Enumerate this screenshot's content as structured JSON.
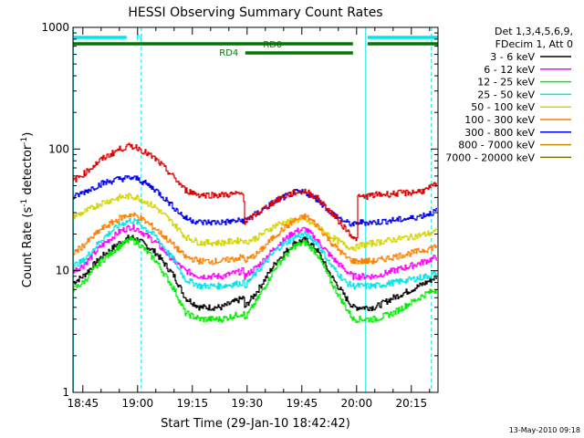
{
  "chart_data": {
    "type": "line",
    "title": "HESSI Observing Summary Count Rates",
    "xlabel": "Start Time (29-Jan-10 18:42:42)",
    "ylabel_main": "Count Rate (s",
    "ylabel_sup1": "-1",
    "ylabel_mid": " detector",
    "ylabel_sup2": "-1",
    "ylabel_end": ")",
    "y_scale": "log",
    "ylim": [
      1,
      1000
    ],
    "xlim_minutes": [
      -2.7,
      97.3
    ],
    "x_ticks": [
      {
        "t": 0,
        "label": "18:45"
      },
      {
        "t": 15,
        "label": "19:00"
      },
      {
        "t": 30,
        "label": "19:15"
      },
      {
        "t": 45,
        "label": "19:30"
      },
      {
        "t": 60,
        "label": "19:45"
      },
      {
        "t": 75,
        "label": "20:00"
      },
      {
        "t": 90,
        "label": "20:15"
      }
    ],
    "y_ticks": [
      {
        "v": 1,
        "label": "1"
      },
      {
        "v": 10,
        "label": "10"
      },
      {
        "v": 100,
        "label": "100"
      },
      {
        "v": 1000,
        "label": "1000"
      }
    ],
    "legend_header": [
      "Det 1,3,4,5,6,9,",
      "FDecim 1, Att 0"
    ],
    "legend_placement": "right",
    "timestamp": "13-May-2010 09:18",
    "series": [
      {
        "name": "3 - 6 keV",
        "color": "#000000",
        "points": [
          [
            -2.7,
            8
          ],
          [
            0,
            9
          ],
          [
            5,
            13
          ],
          [
            10,
            17
          ],
          [
            13,
            19
          ],
          [
            15,
            18
          ],
          [
            20,
            14
          ],
          [
            25,
            9
          ],
          [
            28,
            6
          ],
          [
            32,
            5
          ],
          [
            38,
            5
          ],
          [
            44,
            6
          ],
          [
            44.3,
            5
          ],
          [
            48,
            7
          ],
          [
            53,
            12
          ],
          [
            58,
            17
          ],
          [
            61,
            18
          ],
          [
            64,
            15
          ],
          [
            68,
            9
          ],
          [
            72,
            6
          ],
          [
            74,
            5
          ],
          [
            75,
            5
          ],
          [
            75.3,
            5
          ],
          [
            80,
            5
          ],
          [
            85,
            6
          ],
          [
            90,
            7
          ],
          [
            94,
            8
          ],
          [
            97,
            9
          ]
        ]
      },
      {
        "name": "6 - 12 keV",
        "color": "#ff00ff",
        "points": [
          [
            -2.7,
            10
          ],
          [
            0,
            11
          ],
          [
            5,
            16
          ],
          [
            10,
            21
          ],
          [
            13,
            23
          ],
          [
            15,
            22
          ],
          [
            20,
            17
          ],
          [
            25,
            12
          ],
          [
            28,
            10
          ],
          [
            32,
            9
          ],
          [
            38,
            9
          ],
          [
            44,
            10
          ],
          [
            44.3,
            9
          ],
          [
            48,
            11
          ],
          [
            53,
            16
          ],
          [
            58,
            21
          ],
          [
            61,
            22
          ],
          [
            64,
            18
          ],
          [
            68,
            13
          ],
          [
            72,
            10
          ],
          [
            74,
            9
          ],
          [
            75,
            9
          ],
          [
            75.3,
            9
          ],
          [
            80,
            9
          ],
          [
            85,
            10
          ],
          [
            90,
            11
          ],
          [
            94,
            12
          ],
          [
            97,
            13
          ]
        ]
      },
      {
        "name": "12 - 25 keV",
        "color": "#00ee00",
        "points": [
          [
            -2.7,
            7
          ],
          [
            0,
            8
          ],
          [
            5,
            12
          ],
          [
            10,
            16
          ],
          [
            13,
            18
          ],
          [
            15,
            17
          ],
          [
            20,
            12
          ],
          [
            25,
            7
          ],
          [
            28,
            4.5
          ],
          [
            32,
            4
          ],
          [
            38,
            4
          ],
          [
            44,
            4.5
          ],
          [
            44.3,
            4
          ],
          [
            48,
            6
          ],
          [
            53,
            11
          ],
          [
            58,
            16
          ],
          [
            61,
            17
          ],
          [
            64,
            14
          ],
          [
            68,
            8
          ],
          [
            72,
            5
          ],
          [
            74,
            4
          ],
          [
            75,
            4
          ],
          [
            75.3,
            4
          ],
          [
            80,
            4
          ],
          [
            85,
            4.5
          ],
          [
            90,
            5.5
          ],
          [
            94,
            6.5
          ],
          [
            97,
            7
          ]
        ]
      },
      {
        "name": "25 - 50 keV",
        "color": "#00e5e5",
        "points": [
          [
            -2.7,
            11
          ],
          [
            0,
            12
          ],
          [
            5,
            18
          ],
          [
            10,
            24
          ],
          [
            13,
            26
          ],
          [
            15,
            25
          ],
          [
            20,
            19
          ],
          [
            25,
            12
          ],
          [
            28,
            8.5
          ],
          [
            32,
            7.5
          ],
          [
            38,
            7.5
          ],
          [
            44,
            8
          ],
          [
            44.3,
            7.5
          ],
          [
            48,
            10
          ],
          [
            53,
            15
          ],
          [
            58,
            19
          ],
          [
            61,
            20
          ],
          [
            64,
            17
          ],
          [
            68,
            11
          ],
          [
            72,
            8
          ],
          [
            74,
            7.5
          ],
          [
            75,
            7.5
          ],
          [
            75.3,
            7.5
          ],
          [
            80,
            7.5
          ],
          [
            85,
            8
          ],
          [
            90,
            8.5
          ],
          [
            94,
            9
          ],
          [
            97,
            9.5
          ]
        ]
      },
      {
        "name": "50 - 100 keV",
        "color": "#d4d400",
        "points": [
          [
            -2.7,
            28
          ],
          [
            0,
            30
          ],
          [
            5,
            36
          ],
          [
            10,
            40
          ],
          [
            13,
            41
          ],
          [
            15,
            40
          ],
          [
            20,
            33
          ],
          [
            25,
            24
          ],
          [
            28,
            19
          ],
          [
            32,
            17
          ],
          [
            38,
            17
          ],
          [
            44,
            18
          ],
          [
            44.3,
            17
          ],
          [
            48,
            19
          ],
          [
            53,
            24
          ],
          [
            58,
            26
          ],
          [
            61,
            26
          ],
          [
            64,
            23
          ],
          [
            68,
            19
          ],
          [
            72,
            16
          ],
          [
            74,
            15.5
          ],
          [
            75,
            15.5
          ],
          [
            75.3,
            16
          ],
          [
            80,
            17
          ],
          [
            85,
            18
          ],
          [
            90,
            19
          ],
          [
            94,
            20
          ],
          [
            97,
            21
          ]
        ]
      },
      {
        "name": "100 - 300 keV",
        "color": "#ff8000",
        "points": [
          [
            -2.7,
            14
          ],
          [
            0,
            16
          ],
          [
            5,
            22
          ],
          [
            10,
            27
          ],
          [
            13,
            29
          ],
          [
            15,
            28
          ],
          [
            20,
            22
          ],
          [
            25,
            16
          ],
          [
            28,
            13
          ],
          [
            32,
            12
          ],
          [
            38,
            12
          ],
          [
            44,
            13
          ],
          [
            44.3,
            12
          ],
          [
            48,
            14
          ],
          [
            53,
            20
          ],
          [
            58,
            26
          ],
          [
            61,
            28
          ],
          [
            64,
            24
          ],
          [
            68,
            17
          ],
          [
            72,
            13
          ],
          [
            74,
            12
          ],
          [
            75,
            12
          ],
          [
            75.3,
            12
          ],
          [
            80,
            12
          ],
          [
            85,
            13
          ],
          [
            90,
            14
          ],
          [
            94,
            15
          ],
          [
            97,
            16
          ]
        ]
      },
      {
        "name": "300 - 800 keV",
        "color": "#0000ee",
        "points": [
          [
            -2.7,
            40
          ],
          [
            0,
            44
          ],
          [
            5,
            52
          ],
          [
            10,
            57
          ],
          [
            13,
            58
          ],
          [
            15,
            57
          ],
          [
            20,
            46
          ],
          [
            25,
            33
          ],
          [
            28,
            27
          ],
          [
            32,
            25
          ],
          [
            38,
            25
          ],
          [
            44,
            26
          ],
          [
            44.3,
            26
          ],
          [
            48,
            30
          ],
          [
            53,
            38
          ],
          [
            58,
            44
          ],
          [
            61,
            44
          ],
          [
            64,
            39
          ],
          [
            68,
            30
          ],
          [
            72,
            25
          ],
          [
            74,
            24
          ],
          [
            75,
            24
          ],
          [
            75.3,
            25
          ],
          [
            80,
            25
          ],
          [
            85,
            26
          ],
          [
            90,
            27
          ],
          [
            94,
            29
          ],
          [
            97,
            31
          ]
        ]
      },
      {
        "name": "800 - 7000 keV",
        "color": "#cc8800",
        "points": []
      },
      {
        "name": "7000 - 20000 keV",
        "color": "#807000",
        "points": []
      },
      {
        "name": "",
        "color": "#dd0000",
        "points": [
          [
            -2.7,
            55
          ],
          [
            0,
            62
          ],
          [
            5,
            82
          ],
          [
            10,
            100
          ],
          [
            13,
            106
          ],
          [
            15,
            103
          ],
          [
            20,
            82
          ],
          [
            25,
            58
          ],
          [
            28,
            46
          ],
          [
            32,
            42
          ],
          [
            38,
            42
          ],
          [
            44,
            43
          ],
          [
            44.3,
            25
          ],
          [
            48,
            30
          ],
          [
            53,
            38
          ],
          [
            58,
            44
          ],
          [
            61,
            45
          ],
          [
            64,
            40
          ],
          [
            68,
            30
          ],
          [
            72,
            22
          ],
          [
            74,
            19
          ],
          [
            75,
            17
          ],
          [
            75.3,
            40
          ],
          [
            80,
            42
          ],
          [
            85,
            43
          ],
          [
            90,
            44
          ],
          [
            94,
            46
          ],
          [
            97,
            52
          ]
        ]
      }
    ],
    "state_bars": [
      {
        "label": "N",
        "color": "#00e5e5",
        "segments": [
          [
            -2.7,
            12
          ],
          [
            78,
            97.3
          ]
        ],
        "level": "upper",
        "label_at": 15.5
      },
      {
        "label": "RD0",
        "color": "#007700",
        "segments": [
          [
            -2.7,
            74
          ],
          [
            78,
            97.3
          ]
        ],
        "level": "middle",
        "label_at": 52
      },
      {
        "label": "RD4",
        "color": "#007700",
        "segments": [
          [
            44.5,
            74
          ]
        ],
        "level": "lower",
        "label_at": 40
      }
    ],
    "vertical_lines": [
      {
        "t": -2.6,
        "color": "#00e5e5",
        "style": "solid"
      },
      {
        "t": 16,
        "color": "#00e5e5",
        "style": "dashed"
      },
      {
        "t": 77.5,
        "color": "#00e5e5",
        "style": "solid"
      },
      {
        "t": 95.5,
        "color": "#00e5e5",
        "style": "dashed"
      }
    ]
  }
}
